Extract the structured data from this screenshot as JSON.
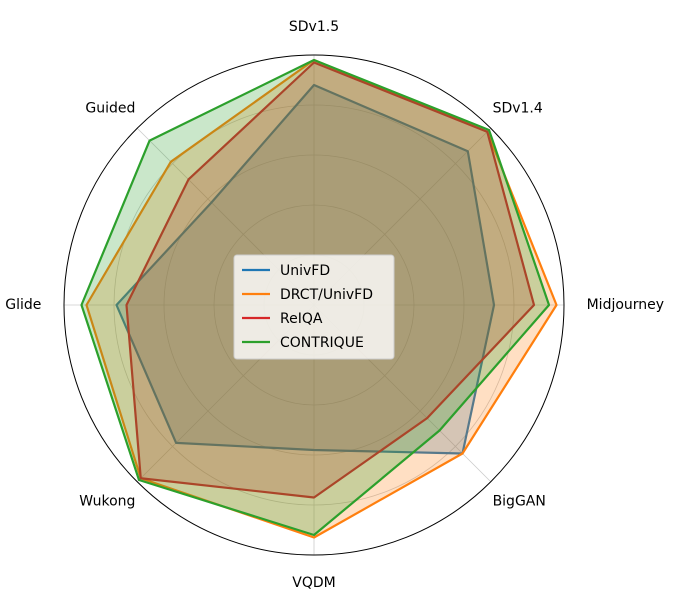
{
  "chart_data": {
    "type": "radar",
    "categories": [
      "SDv1.5",
      "SDv1.4",
      "Midjourney",
      "BigGAN",
      "VQDM",
      "Wukong",
      "Glide",
      "Guided"
    ],
    "series": [
      {
        "name": "UnivFD",
        "color": "#1f77b4",
        "values": [
          0.88,
          0.87,
          0.72,
          0.84,
          0.58,
          0.78,
          0.79,
          0.58
        ]
      },
      {
        "name": "DRCT/UnivFD",
        "color": "#ff7f0e",
        "values": [
          0.98,
          0.98,
          0.97,
          0.84,
          0.93,
          0.98,
          0.91,
          0.81
        ]
      },
      {
        "name": "ReIQA",
        "color": "#d62728",
        "values": [
          0.97,
          0.98,
          0.88,
          0.64,
          0.77,
          0.98,
          0.75,
          0.71
        ]
      },
      {
        "name": "CONTRIQUE",
        "color": "#2ca02c",
        "values": [
          0.98,
          0.99,
          0.94,
          0.71,
          0.92,
          0.99,
          0.93,
          0.93
        ]
      }
    ],
    "rlim": [
      0,
      1
    ],
    "rticks": [
      0.2,
      0.4,
      0.6,
      0.8
    ],
    "grid": true,
    "fill_alpha": 0.25,
    "legend": "center"
  }
}
